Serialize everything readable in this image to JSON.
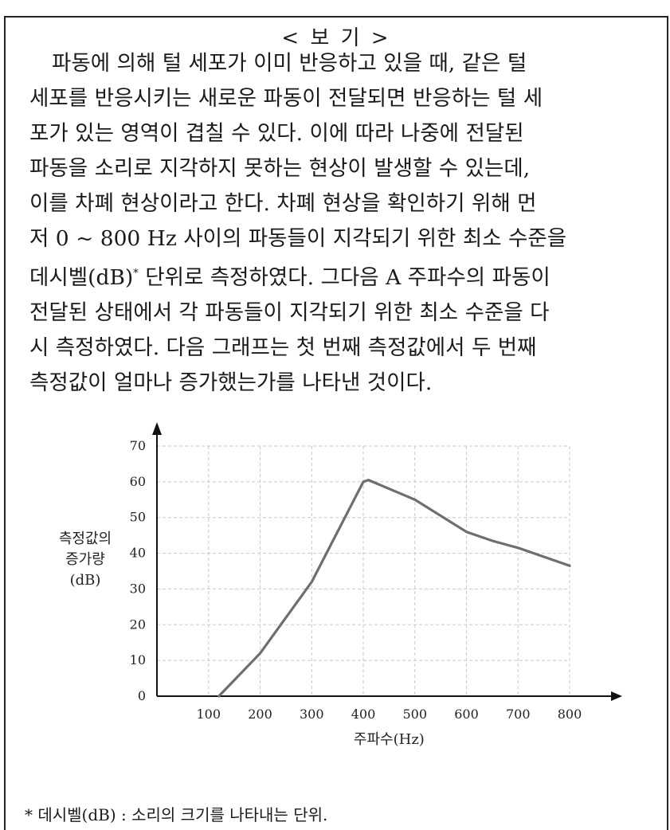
{
  "box_title": "< 보 기 >",
  "passage": {
    "lines": [
      "파동에 의해 털 세포가 이미 반응하고 있을 때, 같은 털",
      "세포를 반응시키는 새로운 파동이 전달되면 반응하는 털 세",
      "포가 있는 영역이 겹칠 수 있다. 이에 따라 나중에 전달된",
      "파동을 소리로 지각하지 못하는 현상이 발생할 수 있는데,",
      "이를 차폐 현상이라고 한다. 차폐 현상을 확인하기 위해 먼",
      "저 0 ~ 800 Hz 사이의 파동들이 지각되기 위한 최소 수준을",
      "데시벨(dB)",
      "*",
      " 단위로 측정하였다. 그다음 A 주파수의 파동이",
      "전달된 상태에서 각 파동들이 지각되기 위한 최소 수준을 다",
      "시 측정하였다. 다음 그래프는 첫 번째 측정값에서 두 번째",
      "측정값이 얼마나 증가했는가를 나타낸 것이다."
    ]
  },
  "chart_data": {
    "type": "line",
    "xlabel": "주파수(Hz)",
    "ylabel_lines": [
      "측정값의",
      "증가량",
      "(dB)"
    ],
    "x_ticks": [
      100,
      200,
      300,
      400,
      500,
      600,
      700,
      800
    ],
    "y_ticks": [
      0,
      10,
      20,
      30,
      40,
      50,
      60,
      70
    ],
    "x_tick_labels": [
      "100",
      "200",
      "300",
      "400",
      "500",
      "600",
      "700",
      "800"
    ],
    "y_tick_labels": [
      "0",
      "10",
      "20",
      "30",
      "40",
      "50",
      "60",
      "70"
    ],
    "xlim": [
      0,
      800
    ],
    "ylim": [
      0,
      70
    ],
    "grid": true,
    "series": [
      {
        "x": [
          120,
          200,
          300,
          400,
          410,
          500,
          600,
          650,
          700,
          800
        ],
        "y": [
          0,
          12,
          32,
          60,
          60.5,
          55,
          46,
          43.5,
          41.5,
          36.5
        ]
      }
    ],
    "line_color": "#6e6e6e"
  },
  "footnote": "* 데시벨(dB) : 소리의 크기를 나타내는 단위."
}
